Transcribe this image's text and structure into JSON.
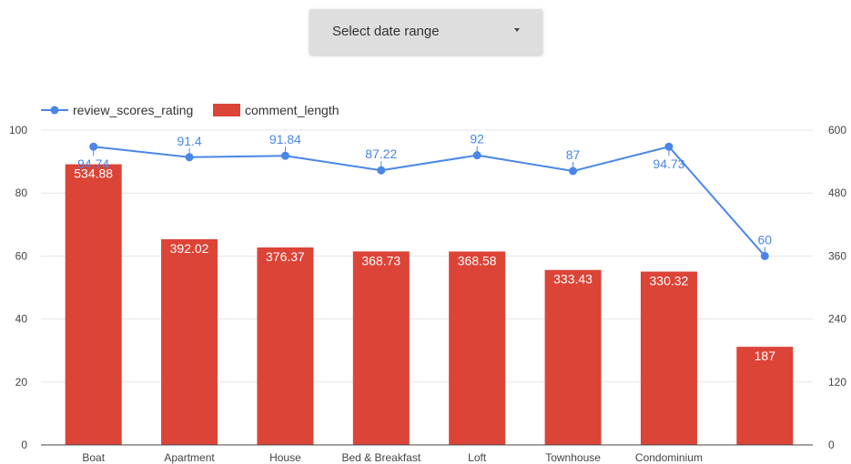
{
  "date_selector": {
    "label": "Select date range"
  },
  "chart_data": {
    "type": "bar",
    "categories": [
      "Boat",
      "Apartment",
      "House",
      "Bed & Breakfast",
      "Loft",
      "Townhouse",
      "Condominium",
      ""
    ],
    "series": [
      {
        "name": "comment_length",
        "type": "bar",
        "axis": "right",
        "color": "#db4437",
        "values": [
          534.88,
          392.02,
          376.37,
          368.73,
          368.58,
          333.43,
          330.32,
          187
        ],
        "labels": [
          "534.88",
          "392.02",
          "376.37",
          "368.73",
          "368.58",
          "333.43",
          "330.32",
          "187"
        ]
      },
      {
        "name": "review_scores_rating",
        "type": "line",
        "axis": "left",
        "color": "#4a86e8",
        "values": [
          94.74,
          91.4,
          91.84,
          87.22,
          92,
          87,
          94.73,
          60
        ],
        "labels": [
          "94.74",
          "91.4",
          "91.84",
          "87.22",
          "92",
          "87",
          "94.73",
          "60"
        ]
      }
    ],
    "y_left": {
      "lim": [
        0,
        100
      ],
      "ticks": [
        "0",
        "20",
        "40",
        "60",
        "80",
        "100"
      ]
    },
    "y_right": {
      "lim": [
        0,
        600
      ],
      "ticks": [
        "0",
        "120",
        "240",
        "360",
        "480",
        "600"
      ]
    },
    "grid": true,
    "legend": "top-left"
  }
}
